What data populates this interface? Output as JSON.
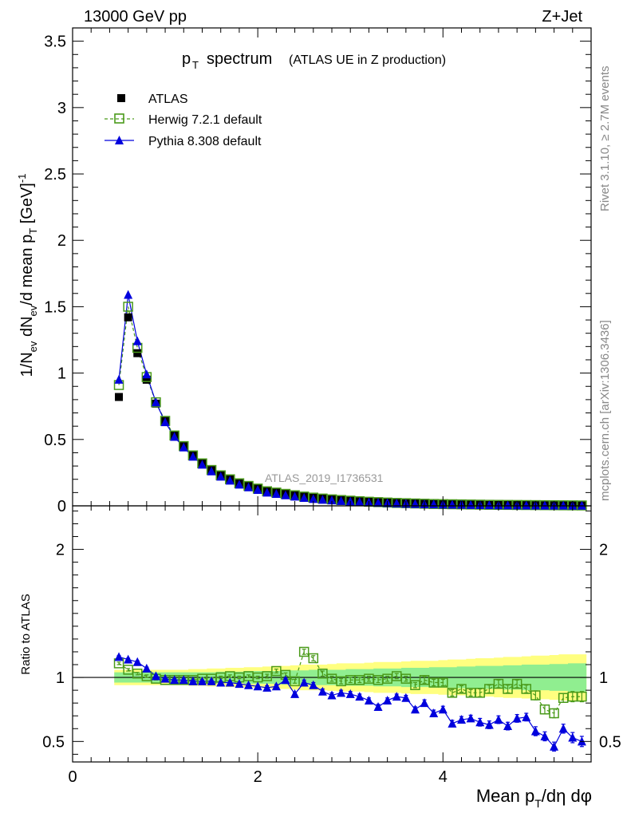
{
  "header": {
    "energy": "13000 GeV pp",
    "process": "Z+Jet",
    "side_rivet": "Rivet 3.1.10, ≥ 2.7M events",
    "side_mcplots": "mcplots.cern.ch [arXiv:1306.3436]",
    "analysis_watermark": "ATLAS_2019_I1736531"
  },
  "colors": {
    "data": "#000000",
    "herwig": "#4a9a1a",
    "pythia": "#0000dd",
    "band_inner": "#90ee90",
    "band_outer": "#ffff80"
  },
  "chart_data": [
    {
      "type": "line",
      "title_main": "p",
      "title_sub": "T",
      "title_rest": "spectrum",
      "title_note": "(ATLAS UE in Z production)",
      "ylabel": "1/N_ev dN_ev/d mean p_T [GeV]^-1",
      "xlim": [
        0,
        5.6
      ],
      "ylim": [
        0,
        3.6
      ],
      "yticks": [
        "0",
        "0.5",
        "1",
        "1.5",
        "2",
        "2.5",
        "3",
        "3.5"
      ],
      "x": [
        0.5,
        0.6,
        0.7,
        0.8,
        0.9,
        1.0,
        1.1,
        1.2,
        1.3,
        1.4,
        1.5,
        1.6,
        1.7,
        1.8,
        1.9,
        2.0,
        2.1,
        2.2,
        2.3,
        2.4,
        2.5,
        2.6,
        2.7,
        2.8,
        2.9,
        3.0,
        3.1,
        3.2,
        3.3,
        3.4,
        3.5,
        3.6,
        3.7,
        3.8,
        3.9,
        4.0,
        4.1,
        4.2,
        4.3,
        4.4,
        4.5,
        4.6,
        4.7,
        4.8,
        4.9,
        5.0,
        5.1,
        5.2,
        5.3,
        5.4,
        5.5
      ],
      "series": [
        {
          "name": "ATLAS",
          "marker": "square",
          "values": [
            0.82,
            1.42,
            1.15,
            0.95,
            0.77,
            0.64,
            0.53,
            0.45,
            0.38,
            0.32,
            0.27,
            0.23,
            0.2,
            0.17,
            0.15,
            0.13,
            0.11,
            0.1,
            0.09,
            0.08,
            0.07,
            0.062,
            0.055,
            0.049,
            0.044,
            0.039,
            0.035,
            0.031,
            0.028,
            0.025,
            0.022,
            0.02,
            0.018,
            0.016,
            0.014,
            0.013,
            0.012,
            0.011,
            0.01,
            0.009,
            0.008,
            0.0075,
            0.007,
            0.0065,
            0.006,
            0.0055,
            0.005,
            0.0045,
            0.004,
            0.0035,
            0.003
          ]
        },
        {
          "name": "Herwig 7.2.1 default",
          "marker": "open-square",
          "line": "dashed",
          "values": [
            0.91,
            1.5,
            1.19,
            0.97,
            0.78,
            0.64,
            0.53,
            0.45,
            0.38,
            0.32,
            0.27,
            0.23,
            0.2,
            0.17,
            0.15,
            0.13,
            0.11,
            0.1,
            0.09,
            0.08,
            0.07,
            0.062,
            0.055,
            0.049,
            0.044,
            0.039,
            0.035,
            0.031,
            0.028,
            0.025,
            0.022,
            0.02,
            0.018,
            0.016,
            0.014,
            0.013,
            0.012,
            0.011,
            0.01,
            0.009,
            0.008,
            0.0075,
            0.007,
            0.0065,
            0.006,
            0.0055,
            0.005,
            0.0045,
            0.004,
            0.0035,
            0.003
          ]
        },
        {
          "name": "Pythia 8.308 default",
          "marker": "triangle",
          "line": "solid",
          "values": [
            0.95,
            1.59,
            1.24,
            0.99,
            0.78,
            0.63,
            0.52,
            0.44,
            0.37,
            0.31,
            0.26,
            0.22,
            0.19,
            0.16,
            0.14,
            0.12,
            0.1,
            0.09,
            0.08,
            0.07,
            0.06,
            0.052,
            0.046,
            0.041,
            0.037,
            0.033,
            0.029,
            0.026,
            0.023,
            0.021,
            0.018,
            0.016,
            0.014,
            0.012,
            0.011,
            0.01,
            0.009,
            0.008,
            0.007,
            0.006,
            0.005,
            0.0045,
            0.004,
            0.0035,
            0.003,
            0.0028,
            0.0025,
            0.0022,
            0.002,
            0.0018,
            0.0016
          ]
        }
      ]
    },
    {
      "type": "line",
      "ylabel": "Ratio to ATLAS",
      "xlabel": "Mean p_T/dη dφ",
      "xlim": [
        0,
        5.6
      ],
      "ylim": [
        0.34,
        2.34
      ],
      "xticks": [
        "0",
        "2",
        "4"
      ],
      "yticks": [
        "0.5",
        "1",
        "2"
      ],
      "x": [
        0.5,
        0.6,
        0.7,
        0.8,
        0.9,
        1.0,
        1.1,
        1.2,
        1.3,
        1.4,
        1.5,
        1.6,
        1.7,
        1.8,
        1.9,
        2.0,
        2.1,
        2.2,
        2.3,
        2.4,
        2.5,
        2.6,
        2.7,
        2.8,
        2.9,
        3.0,
        3.1,
        3.2,
        3.3,
        3.4,
        3.5,
        3.6,
        3.7,
        3.8,
        3.9,
        4.0,
        4.1,
        4.2,
        4.3,
        4.4,
        4.5,
        4.6,
        4.7,
        4.8,
        4.9,
        5.0,
        5.1,
        5.2,
        5.3,
        5.4,
        5.5
      ],
      "band_inner": [
        0.04,
        0.04,
        0.04,
        0.04,
        0.04,
        0.04,
        0.04,
        0.04,
        0.04,
        0.04,
        0.04,
        0.045,
        0.045,
        0.045,
        0.05,
        0.05,
        0.05,
        0.05,
        0.055,
        0.055,
        0.055,
        0.06,
        0.06,
        0.06,
        0.06,
        0.065,
        0.065,
        0.065,
        0.07,
        0.07,
        0.07,
        0.075,
        0.075,
        0.075,
        0.08,
        0.08,
        0.08,
        0.085,
        0.085,
        0.09,
        0.09,
        0.09,
        0.095,
        0.095,
        0.1,
        0.1,
        0.1,
        0.105,
        0.105,
        0.11,
        0.11
      ],
      "band_outer": [
        0.06,
        0.06,
        0.06,
        0.06,
        0.06,
        0.06,
        0.06,
        0.06,
        0.065,
        0.065,
        0.07,
        0.07,
        0.075,
        0.075,
        0.08,
        0.08,
        0.085,
        0.09,
        0.09,
        0.095,
        0.1,
        0.1,
        0.1,
        0.105,
        0.11,
        0.11,
        0.11,
        0.115,
        0.12,
        0.12,
        0.12,
        0.125,
        0.13,
        0.13,
        0.13,
        0.135,
        0.14,
        0.14,
        0.145,
        0.15,
        0.15,
        0.155,
        0.16,
        0.16,
        0.165,
        0.17,
        0.17,
        0.175,
        0.18,
        0.18,
        0.18
      ],
      "series": [
        {
          "name": "Herwig 7.2.1 default",
          "values": [
            1.11,
            1.06,
            1.03,
            1.01,
            0.99,
            0.98,
            0.98,
            0.98,
            0.98,
            0.99,
            0.99,
            1.0,
            1.01,
            1.0,
            1.01,
            1.0,
            1.01,
            1.05,
            1.02,
            0.97,
            1.2,
            1.15,
            1.03,
            0.99,
            0.97,
            0.98,
            0.98,
            0.99,
            0.98,
            0.99,
            1.01,
            0.99,
            0.94,
            0.98,
            0.96,
            0.96,
            0.88,
            0.91,
            0.88,
            0.88,
            0.91,
            0.95,
            0.91,
            0.95,
            0.91,
            0.86,
            0.75,
            0.72,
            0.84,
            0.85,
            0.85
          ],
          "errors": [
            0.01,
            0.01,
            0.01,
            0.01,
            0.01,
            0.01,
            0.01,
            0.01,
            0.01,
            0.01,
            0.01,
            0.01,
            0.01,
            0.01,
            0.01,
            0.01,
            0.015,
            0.015,
            0.015,
            0.015,
            0.02,
            0.02,
            0.02,
            0.02,
            0.02,
            0.02,
            0.02,
            0.02,
            0.02,
            0.02,
            0.02,
            0.02,
            0.02,
            0.025,
            0.025,
            0.025,
            0.025,
            0.025,
            0.025,
            0.03,
            0.03,
            0.03,
            0.03,
            0.03,
            0.03,
            0.035,
            0.035,
            0.035,
            0.035,
            0.04,
            0.04
          ]
        },
        {
          "name": "Pythia 8.308 default",
          "values": [
            1.16,
            1.14,
            1.12,
            1.07,
            1.01,
            0.99,
            0.98,
            0.98,
            0.97,
            0.97,
            0.97,
            0.96,
            0.96,
            0.95,
            0.94,
            0.93,
            0.92,
            0.93,
            0.98,
            0.87,
            0.96,
            0.94,
            0.89,
            0.86,
            0.88,
            0.87,
            0.85,
            0.82,
            0.77,
            0.82,
            0.85,
            0.84,
            0.75,
            0.8,
            0.72,
            0.75,
            0.64,
            0.67,
            0.68,
            0.65,
            0.63,
            0.67,
            0.62,
            0.68,
            0.69,
            0.58,
            0.54,
            0.46,
            0.6,
            0.53,
            0.5
          ],
          "errors": [
            0.01,
            0.01,
            0.01,
            0.01,
            0.01,
            0.01,
            0.01,
            0.01,
            0.01,
            0.01,
            0.01,
            0.01,
            0.01,
            0.01,
            0.01,
            0.01,
            0.015,
            0.015,
            0.015,
            0.015,
            0.02,
            0.02,
            0.02,
            0.02,
            0.02,
            0.02,
            0.02,
            0.02,
            0.02,
            0.02,
            0.02,
            0.02,
            0.02,
            0.025,
            0.025,
            0.025,
            0.025,
            0.025,
            0.025,
            0.03,
            0.03,
            0.03,
            0.03,
            0.03,
            0.03,
            0.035,
            0.035,
            0.035,
            0.035,
            0.04,
            0.04
          ]
        }
      ]
    }
  ]
}
